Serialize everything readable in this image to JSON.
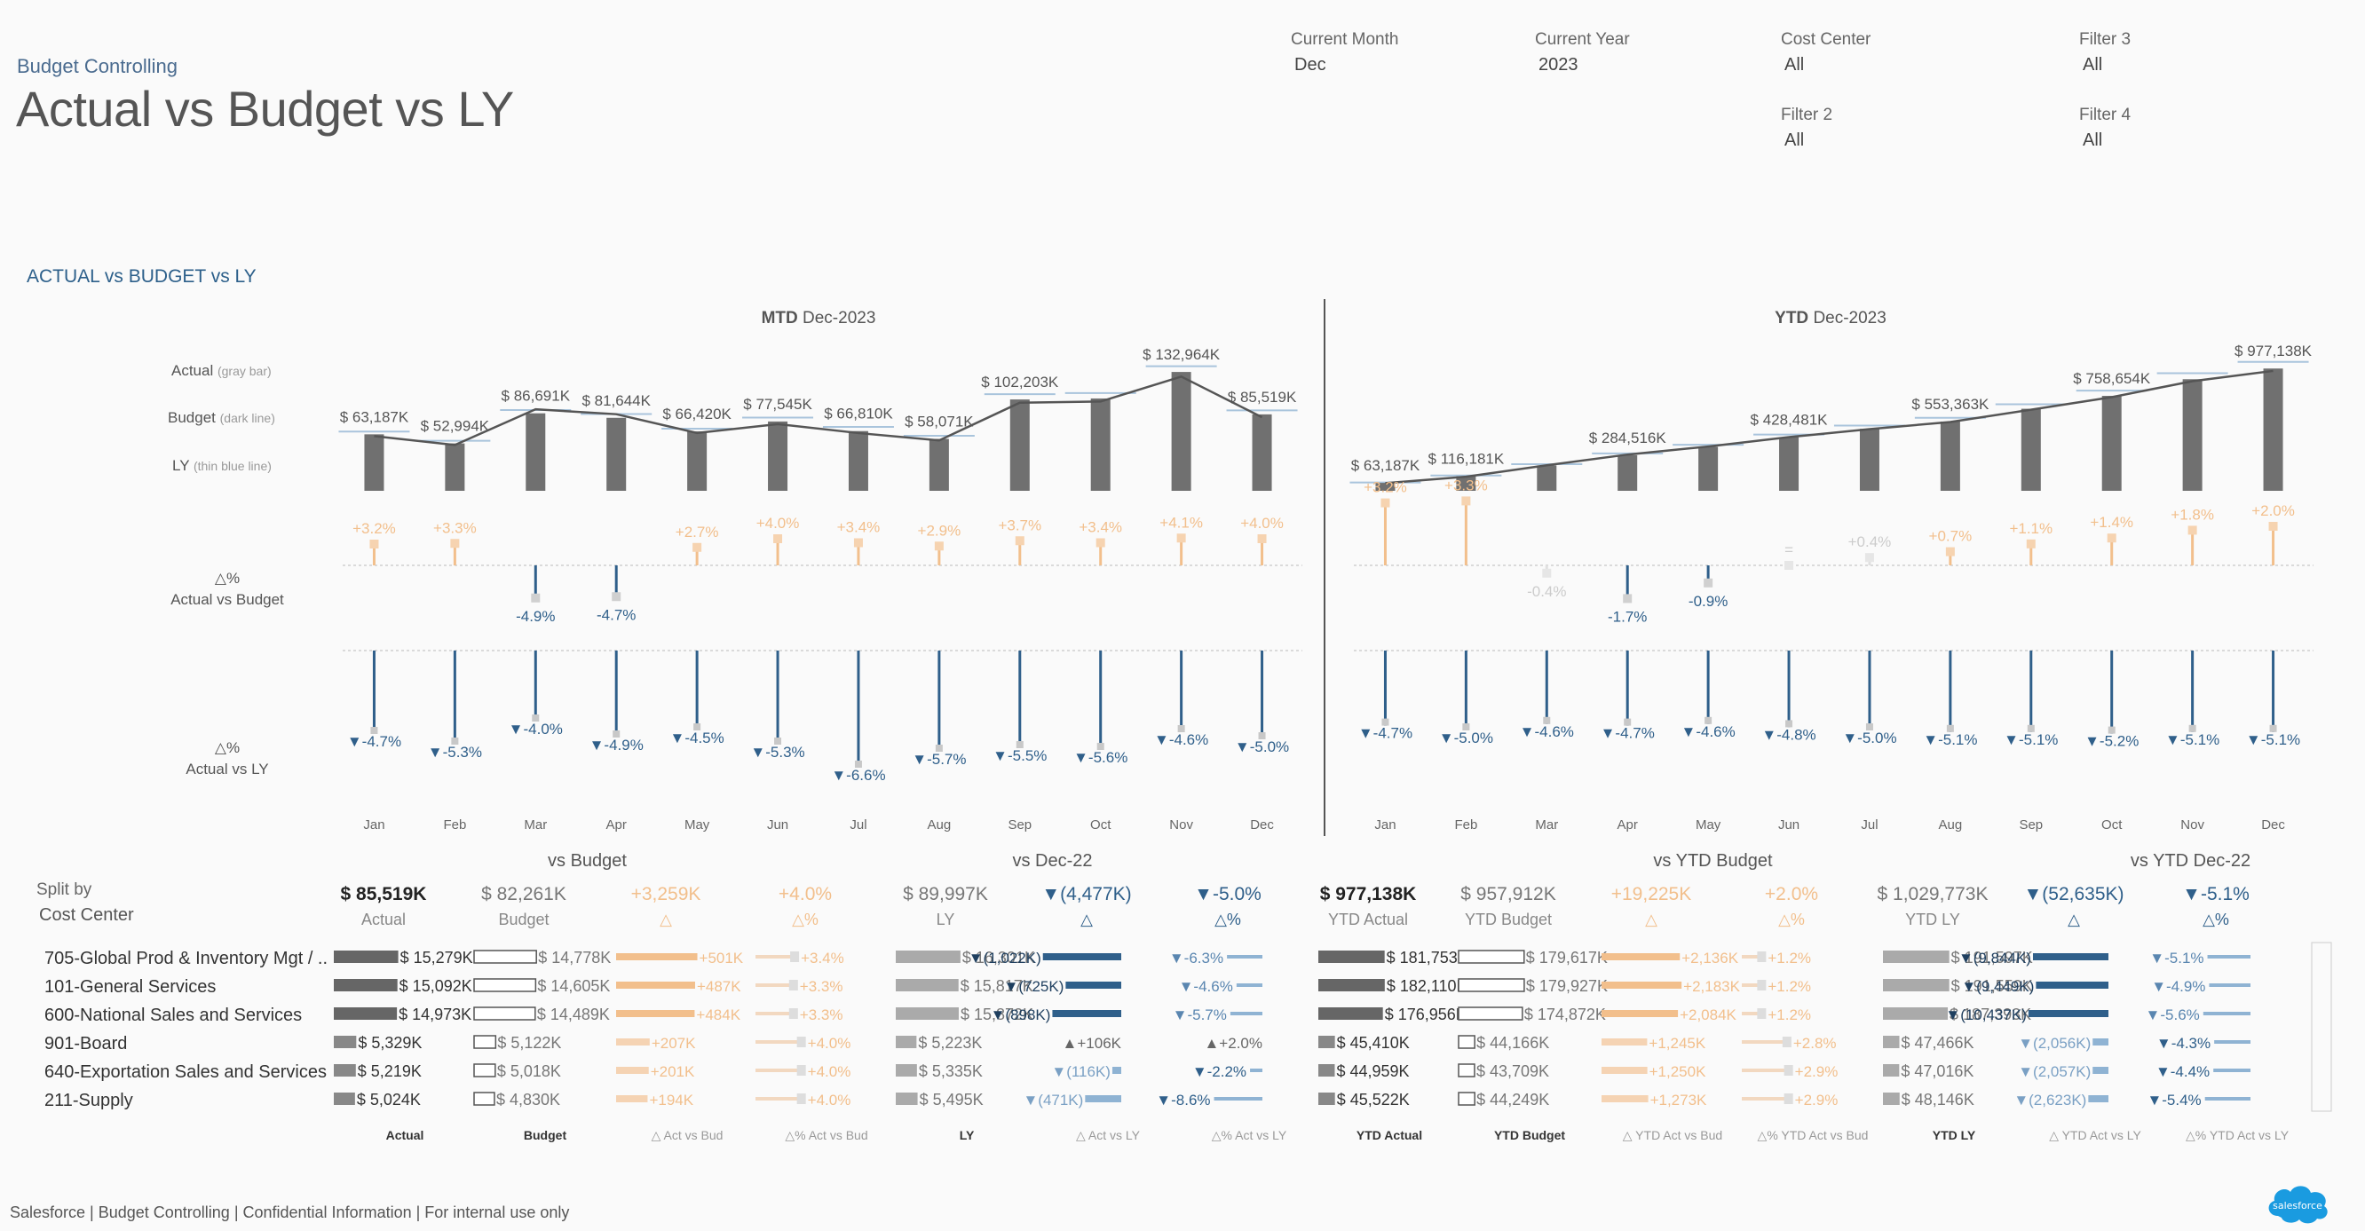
{
  "app": {
    "subtitle": "Budget Controlling",
    "title": "Actual vs Budget vs LY",
    "section_title": "ACTUAL vs BUDGET vs LY",
    "footer": "Salesforce | Budget Controlling | Confidential Information | For internal use only",
    "logo_text": "salesforce"
  },
  "filters": [
    {
      "label": "Current Month",
      "value": "Dec"
    },
    {
      "label": "Current Year",
      "value": "2023"
    },
    {
      "label": "Cost Center",
      "value": "All"
    },
    {
      "label": "Filter 3",
      "value": "All"
    },
    {
      "label": "Filter 2",
      "value": "All"
    },
    {
      "label": "Filter 4",
      "value": "All"
    }
  ],
  "legend": {
    "actual": "Actual",
    "actual_note": "(gray bar)",
    "budget": "Budget",
    "budget_note": "(dark line)",
    "ly": "LY",
    "ly_note": "(thin blue line)",
    "avb": [
      "△%",
      "Actual vs Budget"
    ],
    "avl": [
      "△%",
      "Actual vs LY"
    ]
  },
  "colors": {
    "bar": "#707070",
    "budget_line": "#555555",
    "ly_line": "#a9c4dc",
    "positive": "#f2bf8c",
    "negative": "#2f5f8a",
    "label": "#555555"
  },
  "chart_data": [
    {
      "type": "bar",
      "title": "MTD",
      "title_period": "Dec-2023",
      "categories": [
        "Jan",
        "Feb",
        "Mar",
        "Apr",
        "May",
        "Jun",
        "Jul",
        "Aug",
        "Sep",
        "Oct",
        "Nov",
        "Dec"
      ],
      "series": [
        {
          "name": "Actual",
          "values": [
            63187,
            52994,
            86691,
            81644,
            66420,
            77545,
            66810,
            58071,
            102203,
            103300,
            132964,
            85519
          ],
          "labels": [
            "$ 63,187K",
            "$ 52,994K",
            "$ 86,691K",
            "$ 81,644K",
            "$ 66,420K",
            "$ 77,545K",
            "$ 66,810K",
            "$ 58,071K",
            "$ 102,203K",
            "",
            "$ 132,964K",
            "$ 85,519K"
          ]
        },
        {
          "name": "Budget",
          "values": [
            61200,
            51300,
            91200,
            85700,
            64700,
            74600,
            64600,
            56400,
            98600,
            99900,
            127800,
            82261
          ]
        },
        {
          "name": "LY",
          "values": [
            66300,
            55950,
            90300,
            85850,
            69550,
            81900,
            71550,
            61550,
            108150,
            109400,
            139350,
            89997
          ]
        },
        {
          "name": "Actual vs Budget %",
          "values": [
            3.2,
            3.3,
            -4.9,
            -4.7,
            2.7,
            4.0,
            3.4,
            2.9,
            3.7,
            3.4,
            4.1,
            4.0
          ],
          "labels": [
            "+3.2%",
            "+3.3%",
            "-4.9%",
            "-4.7%",
            "+2.7%",
            "+4.0%",
            "+3.4%",
            "+2.9%",
            "+3.7%",
            "+3.4%",
            "+4.1%",
            "+4.0%"
          ]
        },
        {
          "name": "Actual vs LY %",
          "values": [
            -4.7,
            -5.3,
            -4.0,
            -4.9,
            -4.5,
            -5.3,
            -6.6,
            -5.7,
            -5.5,
            -5.6,
            -4.6,
            -5.0
          ],
          "labels": [
            "▼-4.7%",
            "▼-5.3%",
            "▼-4.0%",
            "▼-4.9%",
            "▼-4.5%",
            "▼-5.3%",
            "▼-6.6%",
            "▼-5.7%",
            "▼-5.5%",
            "▼-5.6%",
            "▼-4.6%",
            "▼-5.0%"
          ]
        }
      ],
      "ylim": [
        0,
        140000
      ]
    },
    {
      "type": "bar",
      "title": "YTD",
      "title_period": "Dec-2023",
      "categories": [
        "Jan",
        "Feb",
        "Mar",
        "Apr",
        "May",
        "Jun",
        "Jul",
        "Aug",
        "Sep",
        "Oct",
        "Nov",
        "Dec"
      ],
      "series": [
        {
          "name": "Actual",
          "values": [
            63187,
            116181,
            202872,
            284516,
            350936,
            428481,
            495291,
            553363,
            655566,
            758654,
            891618,
            977138
          ],
          "labels": [
            "$ 63,187K",
            "$ 116,181K",
            "",
            "$ 284,516K",
            "",
            "$ 428,481K",
            "",
            "$ 553,363K",
            "",
            "$ 758,654K",
            "",
            "$ 977,138K"
          ]
        },
        {
          "name": "Budget",
          "values": [
            61200,
            112500,
            203700,
            289400,
            354100,
            428700,
            493300,
            549700,
            648300,
            748200,
            876000,
            957912
          ]
        },
        {
          "name": "LY",
          "values": [
            66300,
            122250,
            212550,
            298400,
            367950,
            449850,
            521400,
            582950,
            691100,
            800500,
            939850,
            1029773
          ]
        },
        {
          "name": "Actual vs Budget %",
          "values": [
            3.2,
            3.3,
            -0.4,
            -1.7,
            -0.9,
            0.0,
            0.4,
            0.7,
            1.1,
            1.4,
            1.8,
            2.0
          ],
          "labels": [
            "+3.2%",
            "+3.3%",
            "-0.4%",
            "-1.7%",
            "-0.9%",
            "=",
            "+0.4%",
            "+0.7%",
            "+1.1%",
            "+1.4%",
            "+1.8%",
            "+2.0%"
          ]
        },
        {
          "name": "Actual vs LY %",
          "values": [
            -4.7,
            -5.0,
            -4.6,
            -4.7,
            -4.6,
            -4.8,
            -5.0,
            -5.1,
            -5.1,
            -5.2,
            -5.1,
            -5.1
          ],
          "labels": [
            "▼-4.7%",
            "▼-5.0%",
            "▼-4.6%",
            "▼-4.7%",
            "▼-4.6%",
            "▼-4.8%",
            "▼-5.0%",
            "▼-5.1%",
            "▼-5.1%",
            "▼-5.2%",
            "▼-5.1%",
            "▼-5.1%"
          ]
        }
      ],
      "ylim": [
        0,
        1000000
      ]
    }
  ],
  "split": {
    "label1": "Split by",
    "label2": "Cost Center",
    "groups": [
      {
        "title": "vs Budget",
        "center_col": 2
      },
      {
        "title": "vs Dec-22",
        "center_col": 5
      },
      {
        "title": "vs YTD Budget",
        "center_col": 10
      },
      {
        "title": "vs YTD Dec-22",
        "center_col": 13
      }
    ],
    "columns": [
      {
        "key": "actual",
        "total": "$ 85,519K",
        "sub": "Actual",
        "foot": "Actual",
        "kind": "bar",
        "max": 16000
      },
      {
        "key": "budget",
        "total": "$ 82,261K",
        "sub": "Budget",
        "foot": "Budget",
        "kind": "outline",
        "max": 16000
      },
      {
        "key": "dab",
        "total": "+3,259K",
        "sub": "△",
        "foot": "△ Act vs Bud",
        "kind": "pos",
        "max": 520
      },
      {
        "key": "dpb",
        "total": "+4.0%",
        "sub": "△%",
        "foot": "△% Act vs Bud",
        "kind": "pospct",
        "max": 4.5
      },
      {
        "key": "ly",
        "total": "$ 89,997K",
        "sub": "LY",
        "foot": "LY",
        "kind": "lybar",
        "max": 17000
      },
      {
        "key": "dal",
        "total": "▼(4,477K)",
        "sub": "△",
        "foot": "△ Act vs LY",
        "kind": "neg",
        "max": 1100
      },
      {
        "key": "dpl",
        "total": "▼-5.0%",
        "sub": "△%",
        "foot": "△% Act vs LY",
        "kind": "negpct",
        "max": 9
      },
      {
        "key": "ytd_actual",
        "total": "$ 977,138K",
        "sub": "YTD Actual",
        "foot": "YTD Actual",
        "kind": "bar",
        "max": 185000
      },
      {
        "key": "ytd_budget",
        "total": "$ 957,912K",
        "sub": "YTD Budget",
        "foot": "YTD Budget",
        "kind": "outline",
        "max": 185000
      },
      {
        "key": "ytd_dab",
        "total": "+19,225K",
        "sub": "△",
        "foot": "△ YTD Act vs Bud",
        "kind": "pos",
        "max": 2300
      },
      {
        "key": "ytd_dpb",
        "total": "+2.0%",
        "sub": "△%",
        "foot": "△% YTD Act vs Bud",
        "kind": "pospct",
        "max": 3.2
      },
      {
        "key": "ytd_ly",
        "total": "$ 1,029,773K",
        "sub": "YTD LY",
        "foot": "YTD LY",
        "kind": "lybar",
        "max": 195000
      },
      {
        "key": "ytd_dal",
        "total": "▼(52,635K)",
        "sub": "△",
        "foot": "△ YTD Act vs LY",
        "kind": "neg",
        "max": 11000
      },
      {
        "key": "ytd_dpl",
        "total": "▼-5.1%",
        "sub": "△%",
        "foot": "△% YTD Act vs LY",
        "kind": "negpct",
        "max": 6
      }
    ],
    "rows": [
      {
        "name": "705-Global Prod & Inventory Mgt / ..",
        "bold": true,
        "cells": [
          [
            15279,
            "$ 15,279K"
          ],
          [
            14778,
            "$ 14,778K"
          ],
          [
            501,
            "+501K"
          ],
          [
            3.4,
            "+3.4%"
          ],
          [
            16301,
            "$ 16,301K"
          ],
          [
            -1022,
            "▼(1,022K)"
          ],
          [
            -6.3,
            "▼-6.3%"
          ],
          [
            181753,
            "$ 181,753K"
          ],
          [
            179617,
            "$ 179,617K"
          ],
          [
            2136,
            "+2,136K"
          ],
          [
            1.2,
            "+1.2%"
          ],
          [
            191597,
            "$ 191,597K"
          ],
          [
            -9844,
            "▼(9,844K)"
          ],
          [
            -5.1,
            "▼-5.1%"
          ]
        ]
      },
      {
        "name": "101-General Services",
        "bold": true,
        "cells": [
          [
            15092,
            "$ 15,092K"
          ],
          [
            14605,
            "$ 14,605K"
          ],
          [
            487,
            "+487K"
          ],
          [
            3.3,
            "+3.3%"
          ],
          [
            15817,
            "$ 15,817K"
          ],
          [
            -725,
            "▼(725K)"
          ],
          [
            -4.6,
            "▼-4.6%"
          ],
          [
            182110,
            "$ 182,110K"
          ],
          [
            179927,
            "$ 179,927K"
          ],
          [
            2183,
            "+2,183K"
          ],
          [
            1.2,
            "+1.2%"
          ],
          [
            191559,
            "$ 191,559K"
          ],
          [
            -9449,
            "▼(9,449K)"
          ],
          [
            -4.9,
            "▼-4.9%"
          ]
        ]
      },
      {
        "name": "600-National Sales and Services",
        "bold": true,
        "cells": [
          [
            14973,
            "$ 14,973K"
          ],
          [
            14489,
            "$ 14,489K"
          ],
          [
            484,
            "+484K"
          ],
          [
            3.3,
            "+3.3%"
          ],
          [
            15872,
            "$ 15,872K"
          ],
          [
            -898,
            "▼(898K)"
          ],
          [
            -5.7,
            "▼-5.7%"
          ],
          [
            176956,
            "$ 176,956K"
          ],
          [
            174872,
            "$ 174,872K"
          ],
          [
            2084,
            "+2,084K"
          ],
          [
            1.2,
            "+1.2%"
          ],
          [
            187393,
            "$ 187,393K"
          ],
          [
            -10437,
            "▼(10,437K)"
          ],
          [
            -5.6,
            "▼-5.6%"
          ]
        ]
      },
      {
        "name": "901-Board",
        "bold": false,
        "cells": [
          [
            5329,
            "$ 5,329K"
          ],
          [
            5122,
            "$ 5,122K"
          ],
          [
            207,
            "+207K"
          ],
          [
            4.0,
            "+4.0%"
          ],
          [
            5223,
            "$ 5,223K"
          ],
          [
            106,
            "▲+106K"
          ],
          [
            2.0,
            "▲+2.0%"
          ],
          [
            45410,
            "$ 45,410K"
          ],
          [
            44166,
            "$ 44,166K"
          ],
          [
            1245,
            "+1,245K"
          ],
          [
            2.8,
            "+2.8%"
          ],
          [
            47466,
            "$ 47,466K"
          ],
          [
            -2056,
            "▼(2,056K)"
          ],
          [
            -4.3,
            "▼-4.3%"
          ]
        ]
      },
      {
        "name": "640-Exportation Sales and Services",
        "bold": false,
        "cells": [
          [
            5219,
            "$ 5,219K"
          ],
          [
            5018,
            "$ 5,018K"
          ],
          [
            201,
            "+201K"
          ],
          [
            4.0,
            "+4.0%"
          ],
          [
            5335,
            "$ 5,335K"
          ],
          [
            -116,
            "▼(116K)"
          ],
          [
            -2.2,
            "▼-2.2%"
          ],
          [
            44959,
            "$ 44,959K"
          ],
          [
            43709,
            "$ 43,709K"
          ],
          [
            1250,
            "+1,250K"
          ],
          [
            2.9,
            "+2.9%"
          ],
          [
            47016,
            "$ 47,016K"
          ],
          [
            -2057,
            "▼(2,057K)"
          ],
          [
            -4.4,
            "▼-4.4%"
          ]
        ]
      },
      {
        "name": "211-Supply",
        "bold": false,
        "cells": [
          [
            5024,
            "$ 5,024K"
          ],
          [
            4830,
            "$ 4,830K"
          ],
          [
            194,
            "+194K"
          ],
          [
            4.0,
            "+4.0%"
          ],
          [
            5495,
            "$ 5,495K"
          ],
          [
            -471,
            "▼(471K)"
          ],
          [
            -8.6,
            "▼-8.6%"
          ],
          [
            45522,
            "$ 45,522K"
          ],
          [
            44249,
            "$ 44,249K"
          ],
          [
            1273,
            "+1,273K"
          ],
          [
            2.9,
            "+2.9%"
          ],
          [
            48146,
            "$ 48,146K"
          ],
          [
            -2623,
            "▼(2,623K)"
          ],
          [
            -5.4,
            "▼-5.4%"
          ]
        ]
      }
    ]
  }
}
